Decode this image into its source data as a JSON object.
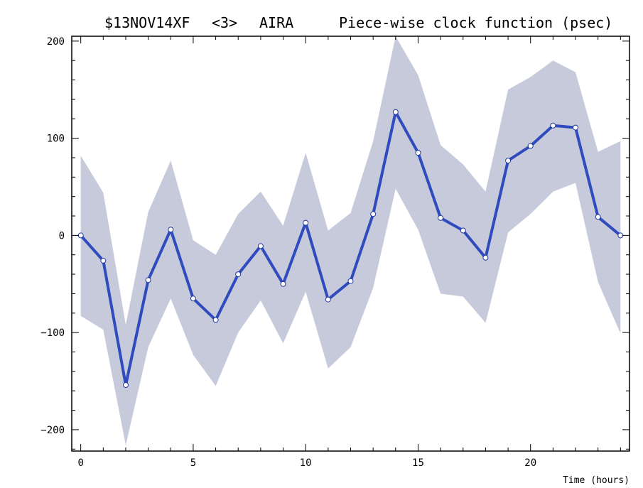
{
  "chart_data": {
    "type": "line",
    "title_parts": [
      "$13NOV14XF",
      "<3>",
      "AIRA",
      "Piece-wise clock function (psec)"
    ],
    "xlabel": "Time (hours)",
    "ylabel": "",
    "xlim": [
      -0.4,
      24.4
    ],
    "ylim": [
      -222,
      205
    ],
    "xticks": [
      0,
      5,
      10,
      15,
      20
    ],
    "yticks": [
      -200,
      -100,
      0,
      100,
      200
    ],
    "x": [
      0,
      1,
      2,
      3,
      4,
      5,
      6,
      7,
      8,
      9,
      10,
      11,
      12,
      13,
      14,
      15,
      16,
      17,
      18,
      19,
      20,
      21,
      22,
      23,
      24
    ],
    "series": [
      {
        "values": [
          0,
          -26,
          -154,
          -46,
          6,
          -65,
          -87,
          -40,
          -11,
          -50,
          13,
          -66,
          -47,
          22,
          127,
          85,
          18,
          5,
          -23,
          77,
          92,
          113,
          111,
          19,
          0
        ],
        "lower": [
          -83,
          -97,
          -216,
          -115,
          -65,
          -123,
          -155,
          -100,
          -67,
          -111,
          -58,
          -137,
          -115,
          -54,
          48,
          6,
          -60,
          -63,
          -90,
          3,
          22,
          45,
          54,
          -48,
          -101
        ],
        "upper": [
          82,
          44,
          -92,
          24,
          77,
          -5,
          -20,
          22,
          45,
          10,
          85,
          5,
          23,
          97,
          205,
          165,
          93,
          73,
          45,
          150,
          163,
          180,
          168,
          86,
          97
        ]
      }
    ],
    "colors": {
      "line": "#2f4bbd",
      "band": "#c6cadb",
      "marker_fill": "#ffffff"
    },
    "grid": false
  }
}
